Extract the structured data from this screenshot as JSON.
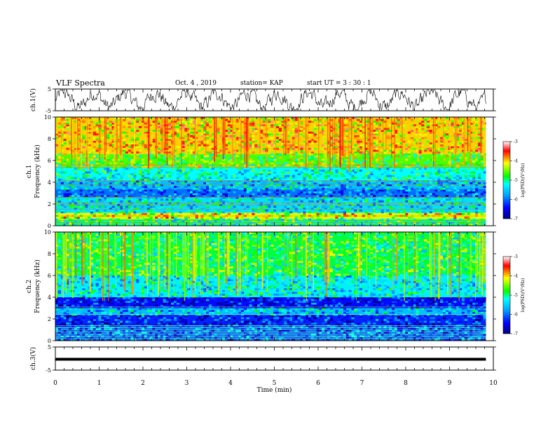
{
  "header": {
    "title": "VLF Spectra",
    "date": "Oct. 4  , 2019",
    "station": "station= KAP",
    "start": "start  UT  =   3  : 30 : 1"
  },
  "chart_data": [
    {
      "type": "line",
      "panel": "ch1-voltage",
      "ylabel": "ch.1(V)",
      "ylim": [
        -5,
        5
      ],
      "yticks": [
        "5",
        "-5"
      ],
      "xlim": [
        0,
        10
      ],
      "data_xmax": 9.83,
      "color": "#000000"
    },
    {
      "type": "heatmap",
      "panel": "ch1-spectrogram",
      "ylabel": "ch.1\nFrequency  (kHz)",
      "ylim": [
        0,
        10
      ],
      "yticks": [
        "0",
        "2",
        "4",
        "6",
        "8",
        "10"
      ],
      "xlim": [
        0,
        10
      ],
      "data_xmax": 9.83,
      "colorbar": {
        "label": "log(PSD)(V²/Hz)",
        "range": [
          -7,
          -3
        ],
        "ticks": [
          "-3",
          "-4",
          "-5",
          "-6",
          "-7"
        ]
      },
      "bands_khz": [
        {
          "from": 0,
          "to": 0.6,
          "level": -5.0
        },
        {
          "from": 0.6,
          "to": 1.2,
          "level": -4.2
        },
        {
          "from": 1.2,
          "to": 2.6,
          "level": -5.4
        },
        {
          "from": 2.6,
          "to": 3.4,
          "level": -6.0
        },
        {
          "from": 3.4,
          "to": 4.2,
          "level": -5.6
        },
        {
          "from": 4.2,
          "to": 5.4,
          "level": -5.2
        },
        {
          "from": 5.4,
          "to": 6.6,
          "level": -4.6
        },
        {
          "from": 6.6,
          "to": 10,
          "level": -4.0
        }
      ]
    },
    {
      "type": "heatmap",
      "panel": "ch2-spectrogram",
      "ylabel": "ch.2\nFrequency  (kHz)",
      "ylim": [
        0,
        10
      ],
      "yticks": [
        "0",
        "2",
        "4",
        "6",
        "8",
        "10"
      ],
      "xlim": [
        0,
        10
      ],
      "data_xmax": 9.83,
      "colorbar": {
        "label": "log(PSD)(V²/Hz)",
        "range": [
          -7,
          -3
        ],
        "ticks": [
          "-3",
          "-4",
          "-5",
          "-6",
          "-7"
        ]
      },
      "bands_khz": [
        {
          "from": 0,
          "to": 1.4,
          "level": -6.0
        },
        {
          "from": 1.4,
          "to": 2.4,
          "level": -6.3
        },
        {
          "from": 2.4,
          "to": 3.0,
          "level": -5.6
        },
        {
          "from": 3.0,
          "to": 4.0,
          "level": -6.4
        },
        {
          "from": 4.0,
          "to": 6.0,
          "level": -5.3
        },
        {
          "from": 6.0,
          "to": 10,
          "level": -4.9
        }
      ]
    },
    {
      "type": "line",
      "panel": "ch3-voltage",
      "ylabel": "ch.3(V)",
      "ylim": [
        -5,
        5
      ],
      "yticks": [
        "5",
        "-5"
      ],
      "xlim": [
        0,
        10
      ],
      "data_xmax": 9.83,
      "constant_value": 0,
      "color": "#000000"
    }
  ],
  "xaxis": {
    "label": "Time  (min)",
    "ticks": [
      "0",
      "1",
      "2",
      "3",
      "4",
      "5",
      "6",
      "7",
      "8",
      "9",
      "10"
    ]
  }
}
